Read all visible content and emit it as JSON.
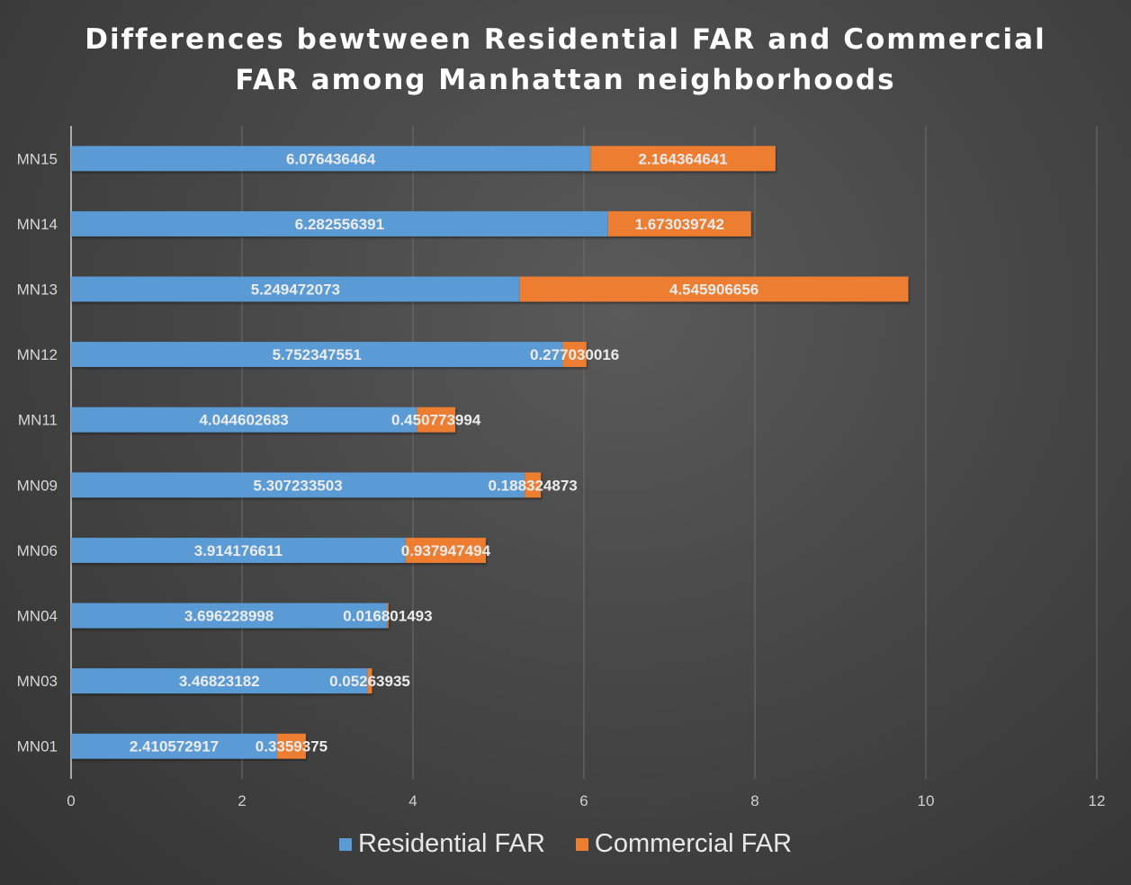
{
  "chart_data": {
    "type": "bar",
    "orientation": "horizontal",
    "stacked": true,
    "title_lines": [
      "Differences bewtween Residential FAR and Commercial",
      "FAR among Manhattan neighborhoods"
    ],
    "xlabel": "",
    "ylabel": "",
    "xlim": [
      0,
      12
    ],
    "x_ticks": [
      0,
      2,
      4,
      6,
      8,
      10,
      12
    ],
    "grid": true,
    "legend_position": "bottom",
    "categories": [
      "MN01",
      "MN03",
      "MN04",
      "MN06",
      "MN09",
      "MN11",
      "MN12",
      "MN13",
      "MN14",
      "MN15"
    ],
    "series": [
      {
        "name": "Residential FAR",
        "color": "#5b9bd5",
        "values": [
          2.410572917,
          3.46823182,
          3.696228998,
          3.914176611,
          5.307233503,
          4.044602683,
          5.752347551,
          5.249472073,
          6.282556391,
          6.076436464
        ],
        "labels": [
          "2.410572917",
          "3.46823182",
          "3.696228998",
          "3.914176611",
          "5.307233503",
          "4.044602683",
          "5.752347551",
          "5.249472073",
          "6.282556391",
          "6.076436464"
        ]
      },
      {
        "name": "Commercial FAR",
        "color": "#ed7d31",
        "values": [
          0.3359375,
          0.05263935,
          0.016801493,
          0.937947494,
          0.188324873,
          0.450773994,
          0.277030016,
          4.545906656,
          1.673039742,
          2.164364641
        ],
        "labels": [
          "0.3359375",
          "0.05263935",
          "0.016801493",
          "0.937947494",
          "0.188324873",
          "0.450773994",
          "0.277030016",
          "4.545906656",
          "1.673039742",
          "2.164364641"
        ]
      }
    ]
  }
}
